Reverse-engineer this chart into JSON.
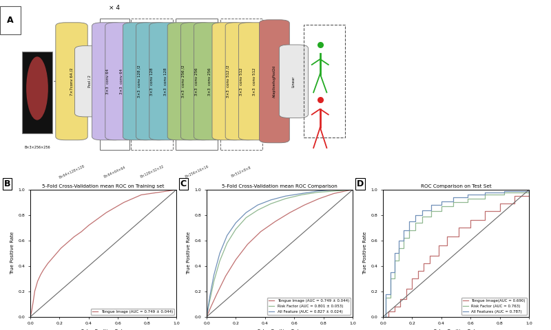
{
  "panel_A_label": "A",
  "panel_B_label": "B",
  "panel_C_label": "C",
  "panel_D_label": "D",
  "panel_B_title": "5-Fold Cross-Validation mean ROC on Training set",
  "panel_C_title": "5-Fold Cross-Validation mean ROC Comparison",
  "panel_D_title": "ROC Comparison on Test Set",
  "xlabel": "False Positive Rate",
  "ylabel": "True Positive Rate",
  "panel_B_legend": [
    "Tongue Image (AUC = 0.749 ± 0.044)"
  ],
  "panel_C_legend": [
    "Tongue Image (AUC = 0.749 ± 0.044)",
    "Risk Factor (AUC = 0.801 ± 0.053)",
    "All Feature (AUC = 0.827 ± 0.024)"
  ],
  "panel_D_legend": [
    "Tongue Image(AUC = 0.690)",
    "Risk Factor (AUC = 0.763)",
    "All Features (AUC = 0.787)"
  ],
  "tongue_color": "#c07070",
  "risk_color": "#90b890",
  "all_color": "#7090b8",
  "diagonal_color": "#666666",
  "nn_colors": {
    "yellow": "#f0dc78",
    "lavender": "#c8b8e8",
    "teal": "#80c0c8",
    "green": "#a8c880",
    "salmon": "#c87870",
    "pool_gray": "#e8e8e8"
  },
  "arch_repeat_label": "× 4",
  "B_fpr": [
    0.0,
    0.01,
    0.02,
    0.03,
    0.05,
    0.07,
    0.09,
    0.12,
    0.15,
    0.18,
    0.21,
    0.25,
    0.3,
    0.35,
    0.4,
    0.46,
    0.52,
    0.58,
    0.64,
    0.7,
    0.76,
    0.82,
    0.88,
    0.94,
    1.0
  ],
  "B_tpr": [
    0.0,
    0.05,
    0.12,
    0.2,
    0.28,
    0.33,
    0.37,
    0.42,
    0.46,
    0.5,
    0.54,
    0.58,
    0.63,
    0.67,
    0.72,
    0.77,
    0.82,
    0.86,
    0.9,
    0.93,
    0.96,
    0.97,
    0.98,
    0.99,
    1.0
  ],
  "C_tongue_fpr": [
    0.0,
    0.03,
    0.07,
    0.13,
    0.2,
    0.28,
    0.37,
    0.47,
    0.57,
    0.67,
    0.77,
    0.87,
    0.95,
    1.0
  ],
  "C_tongue_tpr": [
    0.0,
    0.08,
    0.18,
    0.32,
    0.45,
    0.57,
    0.67,
    0.75,
    0.82,
    0.88,
    0.93,
    0.97,
    0.99,
    1.0
  ],
  "C_risk_fpr": [
    0.0,
    0.02,
    0.05,
    0.09,
    0.14,
    0.2,
    0.27,
    0.35,
    0.44,
    0.54,
    0.65,
    0.76,
    0.88,
    1.0
  ],
  "C_risk_tpr": [
    0.0,
    0.12,
    0.28,
    0.44,
    0.58,
    0.69,
    0.78,
    0.84,
    0.89,
    0.93,
    0.96,
    0.98,
    0.99,
    1.0
  ],
  "C_all_fpr": [
    0.0,
    0.02,
    0.05,
    0.09,
    0.14,
    0.2,
    0.27,
    0.35,
    0.44,
    0.54,
    0.65,
    0.76,
    0.88,
    1.0
  ],
  "C_all_tpr": [
    0.0,
    0.15,
    0.33,
    0.5,
    0.64,
    0.74,
    0.82,
    0.88,
    0.92,
    0.95,
    0.97,
    0.99,
    1.0,
    1.0
  ],
  "D_tongue_fpr": [
    0.0,
    0.04,
    0.08,
    0.12,
    0.16,
    0.2,
    0.24,
    0.28,
    0.32,
    0.38,
    0.44,
    0.52,
    0.6,
    0.7,
    0.8,
    0.9,
    1.0
  ],
  "D_tongue_tpr": [
    0.0,
    0.04,
    0.08,
    0.14,
    0.22,
    0.3,
    0.36,
    0.42,
    0.48,
    0.56,
    0.63,
    0.7,
    0.76,
    0.83,
    0.89,
    0.95,
    1.0
  ],
  "D_risk_fpr": [
    0.0,
    0.02,
    0.05,
    0.08,
    0.11,
    0.14,
    0.18,
    0.22,
    0.27,
    0.33,
    0.4,
    0.48,
    0.58,
    0.7,
    0.83,
    1.0
  ],
  "D_risk_tpr": [
    0.0,
    0.15,
    0.3,
    0.44,
    0.54,
    0.62,
    0.68,
    0.74,
    0.79,
    0.83,
    0.87,
    0.9,
    0.93,
    0.96,
    0.98,
    1.0
  ],
  "D_all_fpr": [
    0.0,
    0.02,
    0.05,
    0.08,
    0.11,
    0.14,
    0.18,
    0.22,
    0.27,
    0.33,
    0.4,
    0.48,
    0.58,
    0.7,
    0.83,
    1.0
  ],
  "D_all_tpr": [
    0.0,
    0.18,
    0.35,
    0.5,
    0.6,
    0.68,
    0.75,
    0.8,
    0.84,
    0.88,
    0.91,
    0.94,
    0.96,
    0.98,
    0.99,
    1.0
  ]
}
